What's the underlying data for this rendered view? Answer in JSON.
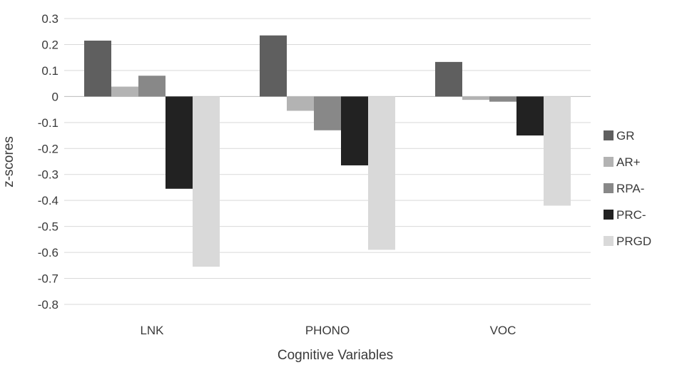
{
  "chart_data": {
    "type": "bar",
    "title": "",
    "xlabel": "Cognitive Variables",
    "ylabel": "z-scores",
    "categories": [
      "LNK",
      "PHONO",
      "VOC"
    ],
    "ylim": [
      -0.8,
      0.3
    ],
    "yticks": [
      "0.3",
      "0.2",
      "0.1",
      "0",
      "-0.1",
      "-0.2",
      "-0.3",
      "-0.4",
      "-0.5",
      "-0.6",
      "-0.7",
      "-0.8"
    ],
    "grid": true,
    "legend_position": "right",
    "series": [
      {
        "name": "GR",
        "color": "#5f5f5f",
        "values": [
          0.215,
          0.235,
          0.133
        ]
      },
      {
        "name": "AR+",
        "color": "#b3b3b3",
        "values": [
          0.038,
          -0.055,
          -0.013
        ]
      },
      {
        "name": "RPA-",
        "color": "#888888",
        "values": [
          0.08,
          -0.13,
          -0.02
        ]
      },
      {
        "name": "PRC-",
        "color": "#222222",
        "values": [
          -0.355,
          -0.265,
          -0.15
        ]
      },
      {
        "name": "PRGD",
        "color": "#d9d9d9",
        "values": [
          -0.655,
          -0.59,
          -0.42
        ]
      }
    ]
  }
}
